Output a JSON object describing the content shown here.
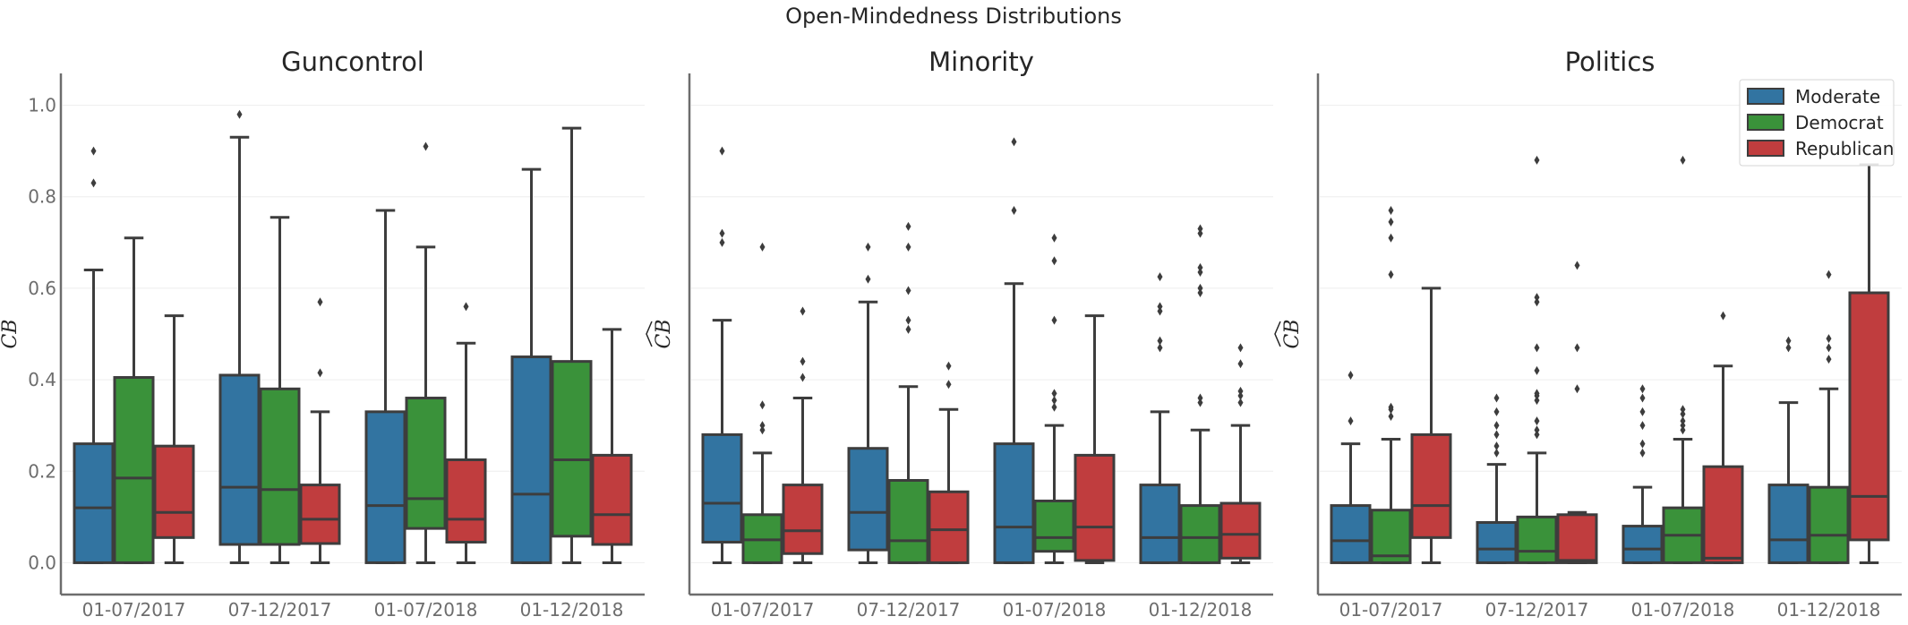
{
  "suptitle": "Open-Mindedness Distributions",
  "legend": {
    "placement": "top-right",
    "entries": [
      "Moderate",
      "Democrat",
      "Republican"
    ]
  },
  "colors": {
    "Moderate": "#3274a1",
    "Democrat": "#3a923a",
    "Republican": "#c03d3e",
    "edge": "#3d3d3d",
    "grid": "#f0f0f0",
    "axis": "#6d6d6d"
  },
  "chart_data": [
    {
      "type": "box",
      "title": "Guncontrol",
      "ylabel": "CB",
      "ylim": [
        -0.05,
        1.05
      ],
      "yticks": [
        "0.0",
        "0.2",
        "0.4",
        "0.6",
        "0.8",
        "1.0"
      ],
      "categories": [
        "01-07/2017",
        "07-12/2017",
        "01-07/2018",
        "01-12/2018"
      ],
      "series": [
        {
          "name": "Moderate",
          "boxes": [
            {
              "whislo": 0.0,
              "q1": 0.0,
              "med": 0.12,
              "q3": 0.26,
              "whishi": 0.64,
              "fliers": [
                0.83,
                0.9
              ]
            },
            {
              "whislo": 0.0,
              "q1": 0.04,
              "med": 0.165,
              "q3": 0.41,
              "whishi": 0.93,
              "fliers": [
                0.98
              ]
            },
            {
              "whislo": 0.0,
              "q1": 0.0,
              "med": 0.125,
              "q3": 0.33,
              "whishi": 0.77,
              "fliers": []
            },
            {
              "whislo": 0.0,
              "q1": 0.0,
              "med": 0.15,
              "q3": 0.45,
              "whishi": 0.86,
              "fliers": []
            }
          ]
        },
        {
          "name": "Democrat",
          "boxes": [
            {
              "whislo": 0.0,
              "q1": 0.0,
              "med": 0.185,
              "q3": 0.405,
              "whishi": 0.71,
              "fliers": []
            },
            {
              "whislo": 0.0,
              "q1": 0.04,
              "med": 0.16,
              "q3": 0.38,
              "whishi": 0.755,
              "fliers": []
            },
            {
              "whislo": 0.0,
              "q1": 0.075,
              "med": 0.14,
              "q3": 0.36,
              "whishi": 0.69,
              "fliers": [
                0.91
              ]
            },
            {
              "whislo": 0.0,
              "q1": 0.058,
              "med": 0.225,
              "q3": 0.44,
              "whishi": 0.95,
              "fliers": []
            }
          ]
        },
        {
          "name": "Republican",
          "boxes": [
            {
              "whislo": 0.0,
              "q1": 0.055,
              "med": 0.11,
              "q3": 0.255,
              "whishi": 0.54,
              "fliers": []
            },
            {
              "whislo": 0.0,
              "q1": 0.042,
              "med": 0.095,
              "q3": 0.17,
              "whishi": 0.33,
              "fliers": [
                0.415,
                0.57
              ]
            },
            {
              "whislo": 0.0,
              "q1": 0.045,
              "med": 0.095,
              "q3": 0.225,
              "whishi": 0.48,
              "fliers": [
                0.56
              ]
            },
            {
              "whislo": 0.0,
              "q1": 0.04,
              "med": 0.105,
              "q3": 0.235,
              "whishi": 0.51,
              "fliers": []
            }
          ]
        }
      ]
    },
    {
      "type": "box",
      "title": "Minority",
      "ylabel": "CB",
      "ylim": [
        -0.05,
        1.05
      ],
      "categories": [
        "01-07/2017",
        "07-12/2017",
        "01-07/2018",
        "01-12/2018"
      ],
      "series": [
        {
          "name": "Moderate",
          "boxes": [
            {
              "whislo": 0.0,
              "q1": 0.045,
              "med": 0.13,
              "q3": 0.28,
              "whishi": 0.53,
              "fliers": [
                0.7,
                0.72,
                0.9
              ]
            },
            {
              "whislo": 0.0,
              "q1": 0.028,
              "med": 0.11,
              "q3": 0.25,
              "whishi": 0.57,
              "fliers": [
                0.62,
                0.69
              ]
            },
            {
              "whislo": 0.0,
              "q1": 0.0,
              "med": 0.078,
              "q3": 0.26,
              "whishi": 0.61,
              "fliers": [
                0.77,
                0.92
              ]
            },
            {
              "whislo": 0.0,
              "q1": 0.0,
              "med": 0.055,
              "q3": 0.17,
              "whishi": 0.33,
              "fliers": [
                0.47,
                0.485,
                0.55,
                0.56,
                0.625
              ]
            }
          ]
        },
        {
          "name": "Democrat",
          "boxes": [
            {
              "whislo": 0.0,
              "q1": 0.0,
              "med": 0.05,
              "q3": 0.105,
              "whishi": 0.24,
              "fliers": [
                0.29,
                0.3,
                0.345,
                0.69
              ]
            },
            {
              "whislo": 0.0,
              "q1": 0.0,
              "med": 0.048,
              "q3": 0.18,
              "whishi": 0.385,
              "fliers": [
                0.51,
                0.53,
                0.595,
                0.69,
                0.735
              ]
            },
            {
              "whislo": 0.0,
              "q1": 0.025,
              "med": 0.055,
              "q3": 0.135,
              "whishi": 0.3,
              "fliers": [
                0.34,
                0.355,
                0.37,
                0.53,
                0.66,
                0.71
              ]
            },
            {
              "whislo": 0.0,
              "q1": 0.0,
              "med": 0.055,
              "q3": 0.125,
              "whishi": 0.29,
              "fliers": [
                0.35,
                0.36,
                0.59,
                0.6,
                0.635,
                0.645,
                0.72,
                0.73
              ]
            }
          ]
        },
        {
          "name": "Republican",
          "boxes": [
            {
              "whislo": 0.0,
              "q1": 0.02,
              "med": 0.07,
              "q3": 0.17,
              "whishi": 0.36,
              "fliers": [
                0.405,
                0.44,
                0.55
              ]
            },
            {
              "whislo": 0.0,
              "q1": 0.0,
              "med": 0.072,
              "q3": 0.155,
              "whishi": 0.335,
              "fliers": [
                0.39,
                0.43
              ]
            },
            {
              "whislo": 0.0,
              "q1": 0.005,
              "med": 0.078,
              "q3": 0.235,
              "whishi": 0.54,
              "fliers": []
            },
            {
              "whislo": 0.0,
              "q1": 0.01,
              "med": 0.062,
              "q3": 0.13,
              "whishi": 0.3,
              "fliers": [
                0.35,
                0.365,
                0.375,
                0.435,
                0.47
              ]
            }
          ]
        }
      ]
    },
    {
      "type": "box",
      "title": "Politics",
      "ylabel": "CB",
      "ylim": [
        -0.05,
        1.05
      ],
      "categories": [
        "01-07/2017",
        "07-12/2017",
        "01-07/2018",
        "01-12/2018"
      ],
      "series": [
        {
          "name": "Moderate",
          "boxes": [
            {
              "whislo": 0.0,
              "q1": 0.0,
              "med": 0.048,
              "q3": 0.125,
              "whishi": 0.26,
              "fliers": [
                0.31,
                0.41
              ]
            },
            {
              "whislo": 0.0,
              "q1": 0.0,
              "med": 0.03,
              "q3": 0.088,
              "whishi": 0.215,
              "fliers": [
                0.24,
                0.255,
                0.28,
                0.3,
                0.33,
                0.36
              ]
            },
            {
              "whislo": 0.0,
              "q1": 0.0,
              "med": 0.03,
              "q3": 0.08,
              "whishi": 0.165,
              "fliers": [
                0.24,
                0.26,
                0.3,
                0.33,
                0.36,
                0.38
              ]
            },
            {
              "whislo": 0.0,
              "q1": 0.0,
              "med": 0.05,
              "q3": 0.17,
              "whishi": 0.35,
              "fliers": [
                0.47,
                0.485
              ]
            }
          ]
        },
        {
          "name": "Democrat",
          "boxes": [
            {
              "whislo": 0.0,
              "q1": 0.0,
              "med": 0.015,
              "q3": 0.115,
              "whishi": 0.27,
              "fliers": [
                0.32,
                0.335,
                0.34,
                0.63,
                0.71,
                0.745,
                0.77
              ]
            },
            {
              "whislo": 0.0,
              "q1": 0.0,
              "med": 0.025,
              "q3": 0.1,
              "whishi": 0.24,
              "fliers": [
                0.28,
                0.29,
                0.31,
                0.355,
                0.365,
                0.37,
                0.42,
                0.47,
                0.57,
                0.58,
                0.88
              ]
            },
            {
              "whislo": 0.0,
              "q1": 0.0,
              "med": 0.06,
              "q3": 0.12,
              "whishi": 0.27,
              "fliers": [
                0.29,
                0.3,
                0.31,
                0.325,
                0.335,
                0.88
              ]
            },
            {
              "whislo": 0.0,
              "q1": 0.0,
              "med": 0.06,
              "q3": 0.165,
              "whishi": 0.38,
              "fliers": [
                0.445,
                0.47,
                0.49,
                0.63
              ]
            }
          ]
        },
        {
          "name": "Republican",
          "boxes": [
            {
              "whislo": 0.0,
              "q1": 0.055,
              "med": 0.125,
              "q3": 0.28,
              "whishi": 0.6,
              "fliers": []
            },
            {
              "whislo": 0.0,
              "q1": 0.0,
              "med": 0.005,
              "q3": 0.105,
              "whishi": 0.11,
              "fliers": [
                0.38,
                0.47,
                0.65
              ]
            },
            {
              "whislo": 0.0,
              "q1": 0.0,
              "med": 0.01,
              "q3": 0.21,
              "whishi": 0.43,
              "fliers": [
                0.54
              ]
            },
            {
              "whislo": 0.0,
              "q1": 0.05,
              "med": 0.145,
              "q3": 0.59,
              "whishi": 0.87,
              "fliers": []
            }
          ]
        }
      ]
    }
  ]
}
